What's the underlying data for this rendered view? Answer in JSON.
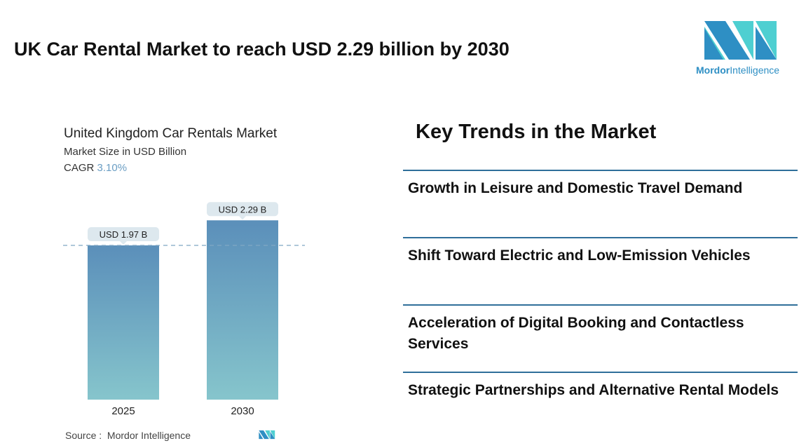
{
  "header": {
    "title": "UK Car Rental Market to reach USD 2.29 billion by 2030"
  },
  "logo": {
    "brand_bold": "Mordor",
    "brand_light": "Intelligence",
    "colors": [
      "#2e8fc4",
      "#4ecfd1"
    ]
  },
  "chart_data": {
    "type": "bar",
    "title": "United Kingdom Car Rentals Market",
    "subtitle": "Market Size in USD Billion",
    "cagr_label": "CAGR",
    "cagr_value": "3.10%",
    "categories": [
      "2025",
      "2030"
    ],
    "values": [
      1.97,
      2.29
    ],
    "data_labels": [
      "USD 1.97 B",
      "USD 2.29 B"
    ],
    "ylim": [
      0,
      2.29
    ],
    "reference_line": 1.97,
    "colors": {
      "bar_top": "#5b8fba",
      "bar_bottom": "#86c5cc",
      "label_bg": "#dde8ee",
      "reference": "#7fa7c4"
    }
  },
  "source": {
    "label": "Source :",
    "value": "Mordor Intelligence"
  },
  "trends": {
    "title": "Key Trends in the Market",
    "items": [
      "Growth in Leisure and Domestic Travel Demand",
      "Shift Toward Electric and Low-Emission Vehicles",
      "Acceleration of Digital Booking and Contactless Services",
      "Strategic Partnerships and Alternative Rental Models"
    ]
  }
}
